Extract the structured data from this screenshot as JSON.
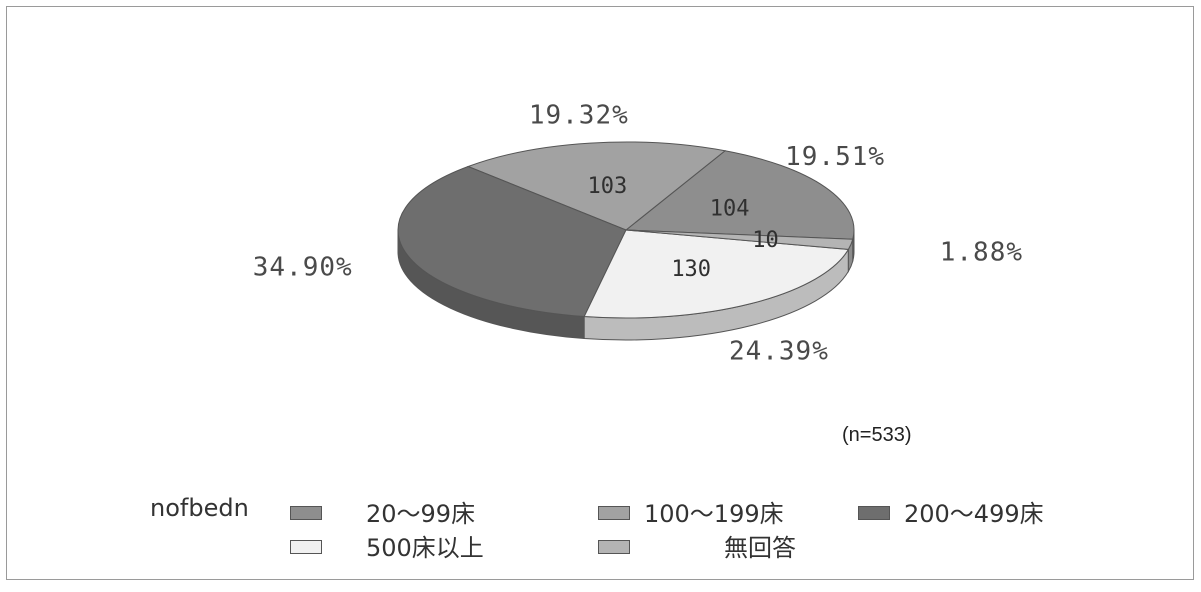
{
  "chart_data": {
    "type": "pie",
    "title": "",
    "note": "(n=533)",
    "legend_title": "nofbedn",
    "legend_placement": "bottom",
    "total": 533,
    "categories": [
      "20～99床",
      "100～199床",
      "200～499床",
      "500床以上",
      "無回答"
    ],
    "counts": [
      104,
      103,
      186,
      130,
      10
    ],
    "count_labels": [
      "104",
      "103",
      "",
      "130",
      "10"
    ],
    "percent_labels": [
      "19.51%",
      "19.32%",
      "34.90%",
      "24.39%",
      "1.88%"
    ],
    "colors": [
      "#8e8e8e",
      "#a2a2a2",
      "#6e6e6e",
      "#f1f1f1",
      "#b4b4b4"
    ]
  }
}
